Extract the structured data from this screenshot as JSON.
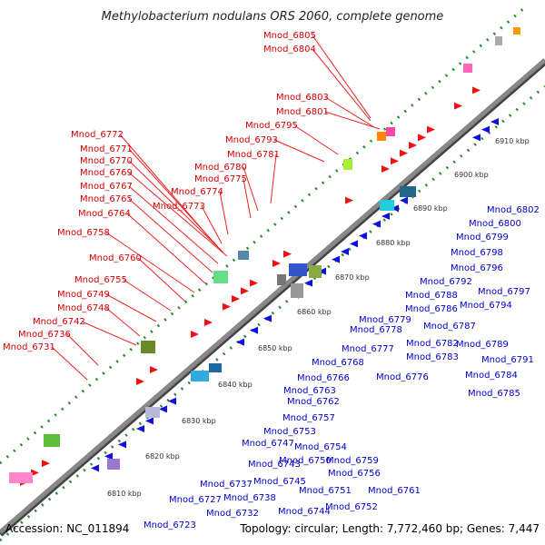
{
  "title": "Methylobacterium nodulans ORS 2060, complete genome",
  "footer": {
    "accession": "Accession: NC_011894",
    "summary": "Topology: circular; Length: 7,772,460 bp; Genes: 7,447"
  },
  "ticks": [
    "6810 kbp",
    "6820 kbp",
    "6830 kbp",
    "6840 kbp",
    "6850 kbp",
    "6860 kbp",
    "6870 kbp",
    "6880 kbp",
    "6890 kbp",
    "6900 kbp",
    "6910 kbp"
  ],
  "labels_forward": [
    "Mnod_6805",
    "Mnod_6804",
    "Mnod_6803",
    "Mnod_6801",
    "Mnod_6795",
    "Mnod_6793",
    "Mnod_6781",
    "Mnod_6780",
    "Mnod_6775",
    "Mnod_6774",
    "Mnod_6773",
    "Mnod_6772",
    "Mnod_6771",
    "Mnod_6770",
    "Mnod_6769",
    "Mnod_6767",
    "Mnod_6765",
    "Mnod_6764",
    "Mnod_6758",
    "Mnod_6760",
    "Mnod_6755",
    "Mnod_6749",
    "Mnod_6748",
    "Mnod_6742",
    "Mnod_6736",
    "Mnod_6731"
  ],
  "labels_reverse": [
    "Mnod_6802",
    "Mnod_6800",
    "Mnod_6799",
    "Mnod_6798",
    "Mnod_6796",
    "Mnod_6792",
    "Mnod_6797",
    "Mnod_6788",
    "Mnod_6794",
    "Mnod_6786",
    "Mnod_6779",
    "Mnod_6787",
    "Mnod_6778",
    "Mnod_6782",
    "Mnod_6789",
    "Mnod_6777",
    "Mnod_6783",
    "Mnod_6791",
    "Mnod_6768",
    "Mnod_6784",
    "Mnod_6766",
    "Mnod_6776",
    "Mnod_6763",
    "Mnod_6785",
    "Mnod_6762",
    "Mnod_6757",
    "Mnod_6753",
    "Mnod_6754",
    "Mnod_6747",
    "Mnod_6759",
    "Mnod_6750",
    "Mnod_6756",
    "Mnod_6743",
    "Mnod_6745",
    "Mnod_6761",
    "Mnod_6737",
    "Mnod_6751",
    "Mnod_6738",
    "Mnod_6752",
    "Mnod_6727",
    "Mnod_6744",
    "Mnod_6732",
    "Mnod_6723"
  ],
  "colors": {
    "forward": "#ee1111",
    "reverse": "#1111dd",
    "backbone": "#888888",
    "dots": "#2a8a2a"
  }
}
